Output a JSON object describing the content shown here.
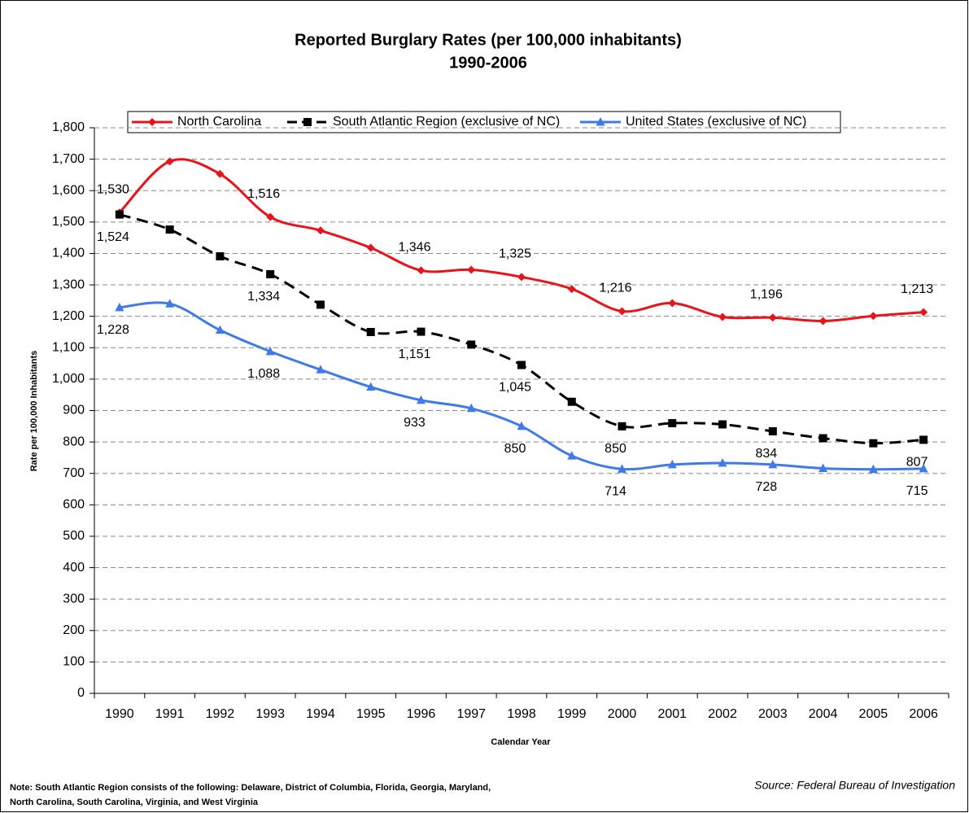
{
  "chart_data": {
    "type": "line",
    "title": "Reported Burglary Rates (per 100,000 inhabitants)",
    "subtitle": "1990-2006",
    "x_label": "Calendar Year",
    "y_label": "Rate per 100,000 Inhabitants",
    "note": [
      "Note: South Atlantic Region consists of the following: Delaware, District of Columbia, Florida, Georgia, Maryland,",
      "North Carolina, South Carolina, Virginia, and West Virginia"
    ],
    "source": "Source: Federal Bureau of Investigation",
    "categories": [
      "1990",
      "1991",
      "1992",
      "1993",
      "1994",
      "1995",
      "1996",
      "1997",
      "1998",
      "1999",
      "2000",
      "2001",
      "2002",
      "2003",
      "2004",
      "2005",
      "2006"
    ],
    "ylim": [
      0,
      1800
    ],
    "yticks": [
      0,
      100,
      200,
      300,
      400,
      500,
      600,
      700,
      800,
      900,
      {
        "value": 1000,
        "label": "1,000"
      },
      {
        "value": 1100,
        "label": "1,100"
      },
      {
        "value": 1200,
        "label": "1,200"
      },
      {
        "value": 1300,
        "label": "1,300"
      },
      {
        "value": 1400,
        "label": "1,400"
      },
      {
        "value": 1500,
        "label": "1,500"
      },
      {
        "value": 1600,
        "label": "1,600"
      },
      {
        "value": 1700,
        "label": "1,700"
      },
      {
        "value": 1800,
        "label": "1,800"
      }
    ],
    "grid": true,
    "legend": "top",
    "series": [
      {
        "name": "North Carolina",
        "color": "#e8141b",
        "marker": "diamond",
        "dash": false,
        "values": [
          1530,
          1693,
          1653,
          1516,
          1473,
          1418,
          1346,
          1348,
          1325,
          1287,
          1216,
          1242,
          1198,
          1196,
          1185,
          1201,
          1213
        ],
        "value_labels": [
          "1,530",
          null,
          null,
          "1,516",
          null,
          null,
          "1,346",
          null,
          "1,325",
          null,
          "1,216",
          null,
          null,
          "1,196",
          null,
          null,
          "1,213"
        ],
        "label_pos": "above"
      },
      {
        "name": "South Atlantic Region (exclusive of NC)",
        "color": "#000000",
        "marker": "square",
        "dash": true,
        "values": [
          1524,
          1476,
          1391,
          1334,
          1237,
          1150,
          1151,
          1110,
          1045,
          928,
          850,
          860,
          856,
          834,
          812,
          796,
          807
        ],
        "value_labels": [
          "1,524",
          null,
          null,
          "1,334",
          null,
          null,
          "1,151",
          null,
          "1,045",
          null,
          "850",
          null,
          null,
          "834",
          null,
          null,
          "807"
        ],
        "label_pos": "below"
      },
      {
        "name": "United States (exclusive of NC)",
        "color": "#3f7ae8",
        "marker": "triangle",
        "dash": false,
        "values": [
          1228,
          1240,
          1156,
          1088,
          1030,
          975,
          933,
          907,
          850,
          756,
          714,
          728,
          733,
          728,
          716,
          713,
          715
        ],
        "value_labels": [
          "1,228",
          null,
          null,
          "1,088",
          null,
          null,
          "933",
          null,
          "850",
          null,
          "714",
          null,
          null,
          "728",
          null,
          null,
          "715"
        ],
        "label_pos": "below"
      }
    ]
  }
}
